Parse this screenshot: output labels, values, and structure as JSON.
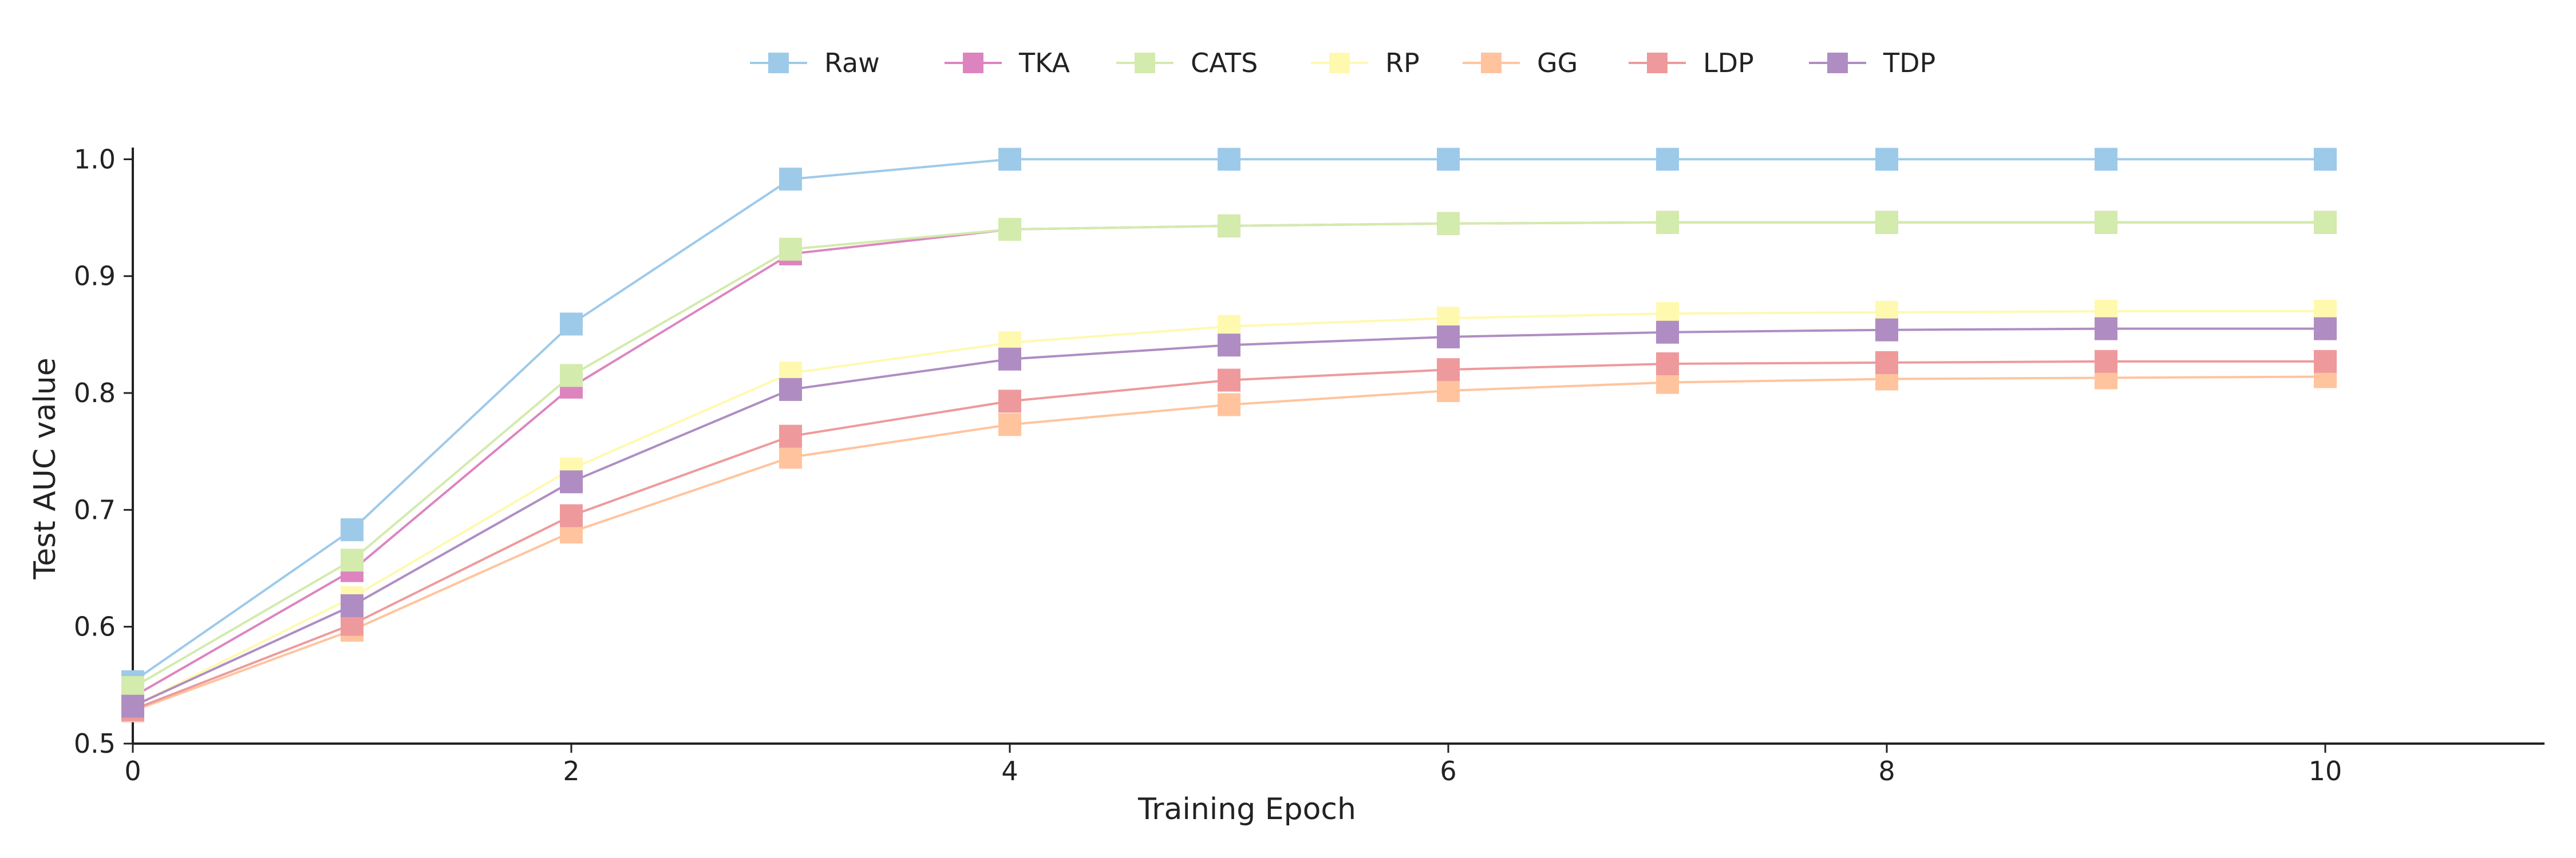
{
  "chart_data": {
    "type": "line",
    "title": "",
    "xlabel": "Training Epoch",
    "ylabel": "Test AUC value",
    "xlim": [
      0,
      11
    ],
    "ylim": [
      0.5,
      1.01
    ],
    "xticks": [
      0,
      2,
      4,
      6,
      8,
      10
    ],
    "yticks": [
      0.5,
      0.6,
      0.7,
      0.8,
      0.9,
      1.0
    ],
    "ytick_labels": [
      "0.5",
      "0.6",
      "0.7",
      "0.8",
      "0.9",
      "1.0"
    ],
    "grid": false,
    "legend_position": "top-center",
    "marker": "square",
    "x": [
      0,
      1,
      2,
      3,
      4,
      5,
      6,
      7,
      8,
      9,
      10
    ],
    "series": [
      {
        "name": "Raw",
        "color": "#9ECAE9",
        "values": [
          0.553,
          0.683,
          0.859,
          0.983,
          1.0,
          1.0,
          1.0,
          1.0,
          1.0,
          1.0,
          1.0
        ]
      },
      {
        "name": "TKA",
        "color": "#DD84C0",
        "values": [
          0.54,
          0.648,
          0.805,
          0.919,
          0.94,
          0.943,
          0.945,
          0.946,
          0.946,
          0.946,
          0.946
        ]
      },
      {
        "name": "CATS",
        "color": "#D3EBAC",
        "values": [
          0.548,
          0.657,
          0.815,
          0.923,
          0.94,
          0.943,
          0.945,
          0.946,
          0.946,
          0.946,
          0.946
        ]
      },
      {
        "name": "RP",
        "color": "#FFF9B0",
        "values": [
          0.532,
          0.625,
          0.735,
          0.817,
          0.843,
          0.857,
          0.864,
          0.868,
          0.869,
          0.87,
          0.87
        ]
      },
      {
        "name": "GG",
        "color": "#FFC49E",
        "values": [
          0.528,
          0.597,
          0.681,
          0.745,
          0.773,
          0.79,
          0.802,
          0.809,
          0.812,
          0.813,
          0.814
        ]
      },
      {
        "name": "LDP",
        "color": "#EE9A9C",
        "values": [
          0.529,
          0.602,
          0.695,
          0.763,
          0.793,
          0.811,
          0.82,
          0.825,
          0.826,
          0.827,
          0.827
        ]
      },
      {
        "name": "TDP",
        "color": "#AF8DC3",
        "values": [
          0.532,
          0.618,
          0.724,
          0.803,
          0.829,
          0.841,
          0.848,
          0.852,
          0.854,
          0.855,
          0.855
        ]
      }
    ]
  }
}
